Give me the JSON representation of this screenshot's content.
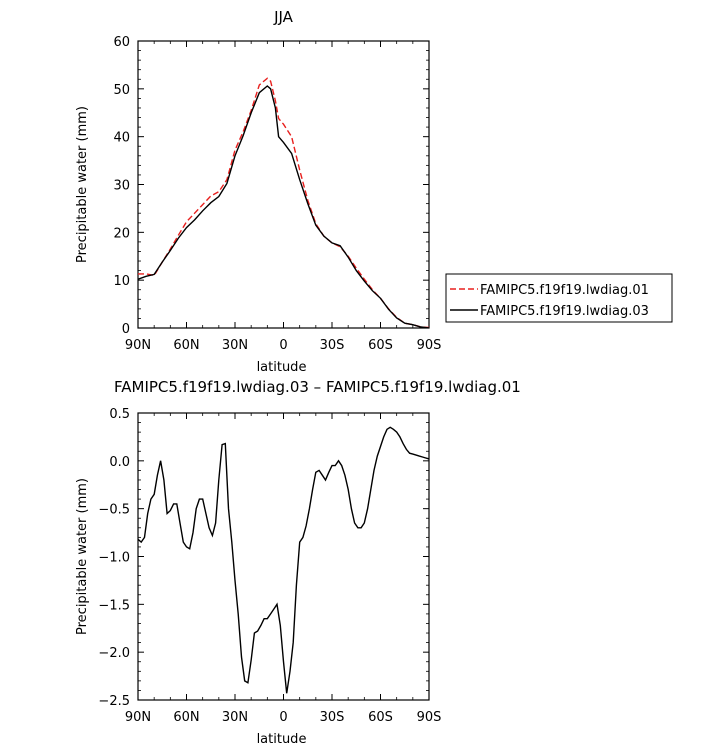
{
  "chart_data": [
    {
      "type": "line",
      "title": "JJA",
      "xlabel": "latitude",
      "ylabel": "Precipitable water (mm)",
      "xlim": [
        90,
        -90
      ],
      "ylim": [
        0,
        60
      ],
      "x_ticks": [
        {
          "value": 90,
          "label": "90N"
        },
        {
          "value": 60,
          "label": "60N"
        },
        {
          "value": 30,
          "label": "30N"
        },
        {
          "value": 0,
          "label": "0"
        },
        {
          "value": -30,
          "label": "30S"
        },
        {
          "value": -60,
          "label": "60S"
        },
        {
          "value": -90,
          "label": "90S"
        }
      ],
      "y_ticks": [
        0,
        10,
        20,
        30,
        40,
        50,
        60
      ],
      "legend_position": "outside-right",
      "series": [
        {
          "name": "FAMIPC5.f19f19.lwdiag.01",
          "color": "#e8201e",
          "dash": "dashed",
          "x": [
            90,
            85,
            80,
            75,
            70,
            65,
            60,
            55,
            50,
            45,
            40,
            35,
            30,
            25,
            20,
            15,
            10,
            8,
            5,
            3,
            0,
            -5,
            -10,
            -15,
            -20,
            -25,
            -30,
            -35,
            -40,
            -45,
            -50,
            -55,
            -60,
            -65,
            -70,
            -75,
            -80,
            -85,
            -90
          ],
          "y": [
            11.3,
            11.3,
            11.0,
            13.8,
            16.5,
            19.4,
            22.2,
            24.0,
            25.8,
            27.6,
            28.5,
            31.0,
            37.2,
            41.0,
            45.5,
            50.8,
            52.2,
            51.6,
            47.5,
            43.8,
            42.6,
            40.0,
            33.0,
            26.7,
            21.8,
            19.2,
            17.8,
            17.0,
            15.0,
            12.5,
            10.2,
            8.0,
            6.2,
            4.0,
            2.2,
            1.0,
            0.7,
            0.2,
            0.1
          ]
        },
        {
          "name": "FAMIPC5.f19f19.lwdiag.03",
          "color": "#000000",
          "dash": "solid",
          "x": [
            90,
            85,
            80,
            75,
            70,
            65,
            60,
            55,
            50,
            45,
            40,
            35,
            30,
            25,
            20,
            15,
            10,
            8,
            5,
            3,
            0,
            -5,
            -10,
            -15,
            -20,
            -25,
            -30,
            -35,
            -40,
            -45,
            -50,
            -55,
            -60,
            -65,
            -70,
            -75,
            -80,
            -85,
            -90
          ],
          "y": [
            10.2,
            10.8,
            11.2,
            13.8,
            16.2,
            18.8,
            21.0,
            22.6,
            24.5,
            26.2,
            27.5,
            30.2,
            36.0,
            40.2,
            45.0,
            49.2,
            50.6,
            50.0,
            46.0,
            40.0,
            38.8,
            36.5,
            31.0,
            26.0,
            21.5,
            19.2,
            17.8,
            17.2,
            14.8,
            12.0,
            9.8,
            7.8,
            6.2,
            3.9,
            2.1,
            1.0,
            0.7,
            0.2,
            0.0
          ]
        }
      ]
    },
    {
      "type": "line",
      "title": "FAMIPC5.f19f19.lwdiag.03 – FAMIPC5.f19f19.lwdiag.01",
      "xlabel": "latitude",
      "ylabel": "Precipitable water (mm)",
      "xlim": [
        90,
        -90
      ],
      "ylim": [
        -2.5,
        0.5
      ],
      "x_ticks": [
        {
          "value": 90,
          "label": "90N"
        },
        {
          "value": 60,
          "label": "60N"
        },
        {
          "value": 30,
          "label": "30N"
        },
        {
          "value": 0,
          "label": "0"
        },
        {
          "value": -30,
          "label": "30S"
        },
        {
          "value": -60,
          "label": "60S"
        },
        {
          "value": -90,
          "label": "90S"
        }
      ],
      "y_ticks": [
        {
          "value": 0.5,
          "label": "0.5"
        },
        {
          "value": 0.0,
          "label": "0.0"
        },
        {
          "value": -0.5,
          "label": "−0.5"
        },
        {
          "value": -1.0,
          "label": "−1.0"
        },
        {
          "value": -1.5,
          "label": "−1.5"
        },
        {
          "value": -2.0,
          "label": "−2.0"
        },
        {
          "value": -2.5,
          "label": "−2.5"
        }
      ],
      "series": [
        {
          "color": "#000000",
          "dash": "solid",
          "x": [
            90,
            88,
            86,
            84,
            82,
            80,
            78,
            76,
            74,
            72,
            70,
            68,
            66,
            64,
            62,
            60,
            58,
            56,
            54,
            52,
            50,
            48,
            46,
            44,
            42,
            40,
            38,
            36,
            34,
            32,
            30,
            28,
            26,
            24,
            22,
            20,
            18,
            16,
            14,
            12,
            10,
            8,
            6,
            4,
            2,
            0,
            -2,
            -4,
            -6,
            -8,
            -10,
            -12,
            -14,
            -16,
            -18,
            -20,
            -22,
            -24,
            -26,
            -28,
            -30,
            -32,
            -34,
            -36,
            -38,
            -40,
            -42,
            -44,
            -46,
            -48,
            -50,
            -52,
            -54,
            -56,
            -58,
            -60,
            -62,
            -64,
            -66,
            -68,
            -70,
            -72,
            -74,
            -76,
            -78,
            -80,
            -82,
            -84,
            -86,
            -88,
            -90
          ],
          "y": [
            -0.82,
            -0.85,
            -0.8,
            -0.55,
            -0.4,
            -0.35,
            -0.15,
            0.0,
            -0.2,
            -0.55,
            -0.52,
            -0.45,
            -0.45,
            -0.65,
            -0.85,
            -0.9,
            -0.92,
            -0.75,
            -0.5,
            -0.4,
            -0.4,
            -0.55,
            -0.7,
            -0.78,
            -0.65,
            -0.2,
            0.17,
            0.18,
            -0.5,
            -0.85,
            -1.25,
            -1.6,
            -2.05,
            -2.3,
            -2.32,
            -2.08,
            -1.8,
            -1.78,
            -1.72,
            -1.65,
            -1.65,
            -1.6,
            -1.55,
            -1.5,
            -1.72,
            -2.1,
            -2.43,
            -2.2,
            -1.9,
            -1.3,
            -0.85,
            -0.8,
            -0.68,
            -0.5,
            -0.3,
            -0.12,
            -0.1,
            -0.15,
            -0.2,
            -0.12,
            -0.05,
            -0.05,
            0.0,
            -0.05,
            -0.15,
            -0.3,
            -0.5,
            -0.65,
            -0.7,
            -0.7,
            -0.65,
            -0.5,
            -0.3,
            -0.1,
            0.05,
            0.15,
            0.25,
            0.33,
            0.35,
            0.33,
            0.3,
            0.25,
            0.18,
            0.12,
            0.08,
            0.07,
            0.06,
            0.05,
            0.04,
            0.03,
            0.02
          ]
        }
      ]
    }
  ]
}
